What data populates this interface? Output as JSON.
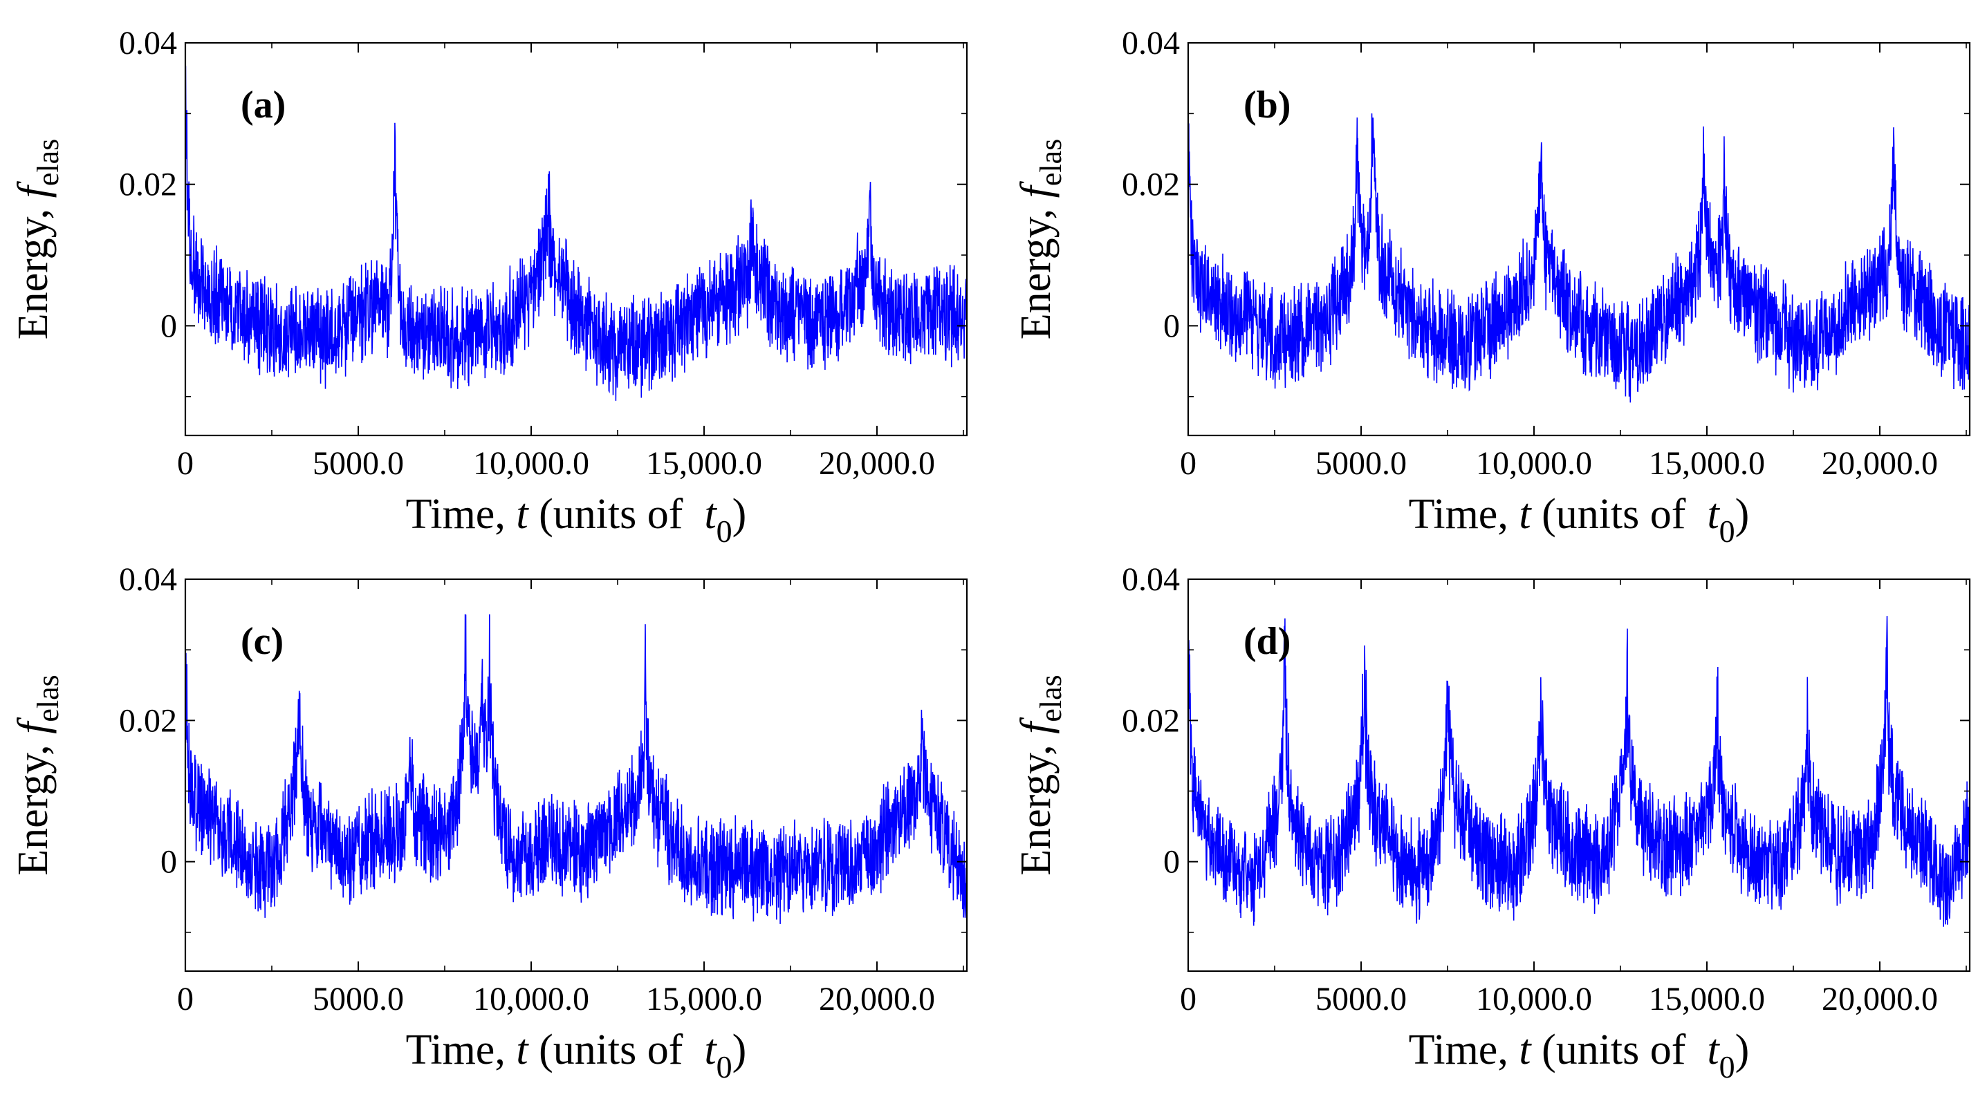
{
  "figure": {
    "line_color": "#0000ff",
    "axis_color": "#000000"
  },
  "chart_data": [
    {
      "type": "line",
      "panel_label": "(a)",
      "xlabel": "Time, t (units of t0)",
      "ylabel": "Energy, f_elas",
      "xlim": [
        0,
        22600
      ],
      "ylim": [
        -0.0155,
        0.04
      ],
      "xticks": [
        0,
        5000,
        10000,
        15000,
        20000
      ],
      "xtick_labels": [
        "0",
        "5000.0",
        "10,000.0",
        "15,000.0",
        "20,000.0"
      ],
      "yticks": [
        0,
        0.02,
        0.04
      ],
      "ytick_labels": [
        "0",
        "0.02",
        "0.04"
      ],
      "series": [
        {
          "baseline": [
            [
              0,
              0.01
            ],
            [
              800,
              0.004
            ],
            [
              2500,
              -0.001
            ],
            [
              4500,
              -0.001
            ],
            [
              5500,
              0.004
            ],
            [
              6300,
              -0.001
            ],
            [
              8000,
              -0.002
            ],
            [
              9500,
              0.001
            ],
            [
              10400,
              0.009
            ],
            [
              11500,
              0.001
            ],
            [
              12500,
              -0.004
            ],
            [
              14000,
              -0.001
            ],
            [
              15500,
              0.004
            ],
            [
              16500,
              0.007
            ],
            [
              17300,
              0.002
            ],
            [
              18500,
              0.0
            ],
            [
              19500,
              0.006
            ],
            [
              20500,
              0.001
            ],
            [
              22600,
              0.002
            ]
          ],
          "peaks": [
            [
              0,
              0.036
            ],
            [
              6070,
              0.036
            ],
            [
              10500,
              0.022
            ],
            [
              16400,
              0.017
            ],
            [
              19800,
              0.02
            ]
          ]
        }
      ]
    },
    {
      "type": "line",
      "panel_label": "(b)",
      "xlabel": "Time, t (units of t0)",
      "ylabel": "Energy, f_elas",
      "xlim": [
        0,
        22600
      ],
      "ylim": [
        -0.0155,
        0.04
      ],
      "xticks": [
        0,
        5000,
        10000,
        15000,
        20000
      ],
      "xtick_labels": [
        "0",
        "5000.0",
        "10,000.0",
        "15,000.0",
        "20,000.0"
      ],
      "yticks": [
        0,
        0.02,
        0.04
      ],
      "ytick_labels": [
        "0",
        "0.02",
        "0.04"
      ],
      "series": [
        {
          "baseline": [
            [
              0,
              0.008
            ],
            [
              1000,
              0.003
            ],
            [
              2500,
              -0.002
            ],
            [
              4000,
              0.001
            ],
            [
              5300,
              0.01
            ],
            [
              6500,
              0.001
            ],
            [
              8000,
              -0.003
            ],
            [
              9300,
              0.002
            ],
            [
              10200,
              0.009
            ],
            [
              11200,
              0.001
            ],
            [
              12800,
              -0.004
            ],
            [
              14000,
              0.002
            ],
            [
              15000,
              0.009
            ],
            [
              15600,
              0.006
            ],
            [
              16800,
              0.001
            ],
            [
              18000,
              -0.004
            ],
            [
              19500,
              0.004
            ],
            [
              20400,
              0.008
            ],
            [
              21500,
              0.001
            ],
            [
              22600,
              -0.004
            ]
          ],
          "peaks": [
            [
              0,
              0.028
            ],
            [
              4900,
              0.03
            ],
            [
              5350,
              0.0355
            ],
            [
              10200,
              0.033
            ],
            [
              14900,
              0.0335
            ],
            [
              15500,
              0.0255
            ],
            [
              20400,
              0.0325
            ]
          ]
        }
      ]
    },
    {
      "type": "line",
      "panel_label": "(c)",
      "xlabel": "Time, t (units of t0)",
      "ylabel": "Energy, f_elas",
      "xlim": [
        0,
        22600
      ],
      "ylim": [
        -0.0155,
        0.04
      ],
      "xticks": [
        0,
        5000,
        10000,
        15000,
        20000
      ],
      "xtick_labels": [
        "0",
        "5000.0",
        "10,000.0",
        "15,000.0",
        "20,000.0"
      ],
      "yticks": [
        0,
        0.02,
        0.04
      ],
      "ytick_labels": [
        "0",
        "0.02",
        "0.04"
      ],
      "series": [
        {
          "baseline": [
            [
              0,
              0.01
            ],
            [
              1500,
              0.002
            ],
            [
              2500,
              -0.002
            ],
            [
              3200,
              0.01
            ],
            [
              4500,
              0.0
            ],
            [
              6500,
              0.006
            ],
            [
              7500,
              0.003
            ],
            [
              8200,
              0.014
            ],
            [
              8700,
              0.012
            ],
            [
              9500,
              0.0
            ],
            [
              10500,
              0.003
            ],
            [
              11500,
              0.001
            ],
            [
              13300,
              0.01
            ],
            [
              14500,
              0.0
            ],
            [
              17000,
              -0.001
            ],
            [
              19500,
              -0.001
            ],
            [
              21200,
              0.01
            ],
            [
              22000,
              0.004
            ],
            [
              22600,
              -0.003
            ]
          ],
          "peaks": [
            [
              0,
              0.037
            ],
            [
              3300,
              0.027
            ],
            [
              6500,
              0.018
            ],
            [
              8100,
              0.034
            ],
            [
              8600,
              0.03
            ],
            [
              8800,
              0.0305
            ],
            [
              13300,
              0.035
            ],
            [
              21300,
              0.021
            ]
          ]
        }
      ]
    },
    {
      "type": "line",
      "panel_label": "(d)",
      "xlabel": "Time, t (units of t0)",
      "ylabel": "Energy, f_elas",
      "xlim": [
        0,
        22600
      ],
      "ylim": [
        -0.0155,
        0.04
      ],
      "xticks": [
        0,
        5000,
        10000,
        15000,
        20000
      ],
      "xtick_labels": [
        "0",
        "5000.0",
        "10,000.0",
        "15,000.0",
        "20,000.0"
      ],
      "yticks": [
        0,
        0.02,
        0.04
      ],
      "ytick_labels": [
        "0",
        "0.02",
        "0.04"
      ],
      "series": [
        {
          "baseline": [
            [
              0,
              0.01
            ],
            [
              900,
              0.001
            ],
            [
              1900,
              -0.003
            ],
            [
              2700,
              0.008
            ],
            [
              3600,
              0.0
            ],
            [
              4300,
              0.0
            ],
            [
              5100,
              0.01
            ],
            [
              6000,
              0.001
            ],
            [
              6800,
              -0.002
            ],
            [
              7600,
              0.009
            ],
            [
              8500,
              0.001
            ],
            [
              9400,
              -0.001
            ],
            [
              10200,
              0.008
            ],
            [
              11200,
              0.001
            ],
            [
              12000,
              0.0
            ],
            [
              12600,
              0.011
            ],
            [
              13500,
              0.002
            ],
            [
              14500,
              0.002
            ],
            [
              15300,
              0.008
            ],
            [
              16200,
              0.001
            ],
            [
              17000,
              -0.001
            ],
            [
              17900,
              0.008
            ],
            [
              18800,
              0.001
            ],
            [
              19700,
              0.002
            ],
            [
              20200,
              0.011
            ],
            [
              21200,
              0.002
            ],
            [
              22000,
              -0.003
            ],
            [
              22600,
              0.005
            ]
          ],
          "peaks": [
            [
              0,
              0.037
            ],
            [
              2800,
              0.035
            ],
            [
              5100,
              0.035
            ],
            [
              7500,
              0.033
            ],
            [
              10200,
              0.032
            ],
            [
              12700,
              0.03
            ],
            [
              15300,
              0.027
            ],
            [
              17900,
              0.0235
            ],
            [
              20200,
              0.0375
            ]
          ]
        }
      ]
    }
  ]
}
